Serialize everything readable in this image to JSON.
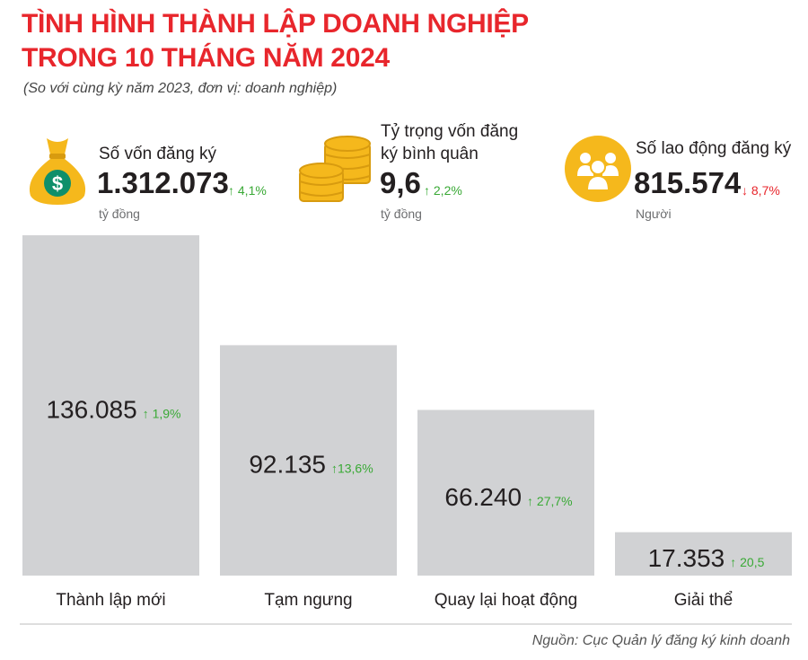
{
  "header": {
    "title_line1": "TÌNH HÌNH THÀNH LẬP DOANH NGHIỆP",
    "title_line2": "TRONG 10 THÁNG NĂM 2024",
    "subtitle": "(So với cùng kỳ năm 2023, đơn vị: doanh nghiệp)"
  },
  "stats": [
    {
      "label": "Số vốn đăng ký",
      "value": "1.312.073",
      "change": "↑ 4,1%",
      "direction": "up",
      "unit": "tỷ đồng",
      "icon": "money-bag-icon"
    },
    {
      "label_line1": "Tỷ trọng vốn đăng",
      "label_line2": "ký bình quân",
      "value": "9,6",
      "change": "↑ 2,2%",
      "direction": "up",
      "unit": "tỷ đồng",
      "icon": "coin-stack-icon"
    },
    {
      "label": "Số lao động đăng ký",
      "value": "815.574",
      "change": "↓ 8,7%",
      "direction": "down",
      "unit": "Người",
      "icon": "people-group-icon"
    }
  ],
  "chart_data": {
    "type": "bar",
    "categories": [
      "Thành lập mới",
      "Tạm ngưng",
      "Quay lại hoạt động",
      "Giải thể"
    ],
    "values": [
      136085,
      92135,
      66240,
      17353
    ],
    "value_labels": [
      "136.085",
      "92.135",
      "66.240",
      "17.353"
    ],
    "changes": [
      "↑ 1,9%",
      "↑13,6%",
      "↑ 27,7%",
      "↑ 20,5"
    ],
    "title": "",
    "xlabel": "",
    "ylabel": "",
    "ylim": [
      0,
      136085
    ],
    "grid": false,
    "legend": "none"
  },
  "colors": {
    "title": "#e8262c",
    "bar": "#d1d2d4",
    "up": "#39a935",
    "down": "#e8262c",
    "icon_gold": "#f5b81c",
    "icon_gold_dark": "#d89b0f",
    "baseline": "#bdbdbd"
  },
  "footer": {
    "source": "Nguồn: Cục Quản lý đăng ký kinh doanh"
  }
}
